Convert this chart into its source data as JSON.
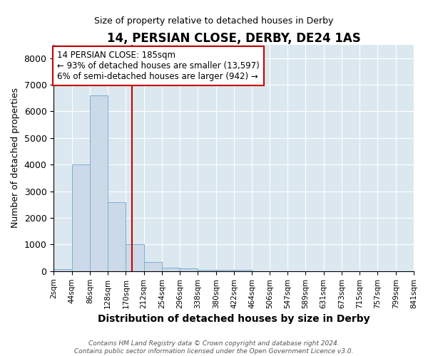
{
  "title": "14, PERSIAN CLOSE, DERBY, DE24 1AS",
  "subtitle": "Size of property relative to detached houses in Derby",
  "xlabel": "Distribution of detached houses by size in Derby",
  "ylabel": "Number of detached properties",
  "bar_color": "#ccd9e8",
  "bar_edge_color": "#7bafd4",
  "vline_x": 185,
  "vline_color": "#cc0000",
  "annotation_text": "14 PERSIAN CLOSE: 185sqm\n← 93% of detached houses are smaller (13,597)\n6% of semi-detached houses are larger (942) →",
  "annotation_box_color": "#cc0000",
  "footer_text": "Contains HM Land Registry data © Crown copyright and database right 2024.\nContains public sector information licensed under the Open Government Licence v3.0.",
  "bin_edges": [
    2,
    44,
    86,
    128,
    170,
    212,
    254,
    296,
    338,
    380,
    422,
    464,
    506,
    547,
    589,
    631,
    673,
    715,
    757,
    799,
    841
  ],
  "bin_labels": [
    "2sqm",
    "44sqm",
    "86sqm",
    "128sqm",
    "170sqm",
    "212sqm",
    "254sqm",
    "296sqm",
    "338sqm",
    "380sqm",
    "422sqm",
    "464sqm",
    "506sqm",
    "547sqm",
    "589sqm",
    "631sqm",
    "673sqm",
    "715sqm",
    "757sqm",
    "799sqm",
    "841sqm"
  ],
  "bar_heights": [
    80,
    4000,
    6600,
    2600,
    1000,
    330,
    120,
    100,
    60,
    50,
    60,
    0,
    0,
    0,
    0,
    0,
    0,
    0,
    0,
    0
  ],
  "ylim": [
    0,
    8500
  ],
  "yticks": [
    0,
    1000,
    2000,
    3000,
    4000,
    5000,
    6000,
    7000,
    8000
  ],
  "background_color": "#dce8f0"
}
